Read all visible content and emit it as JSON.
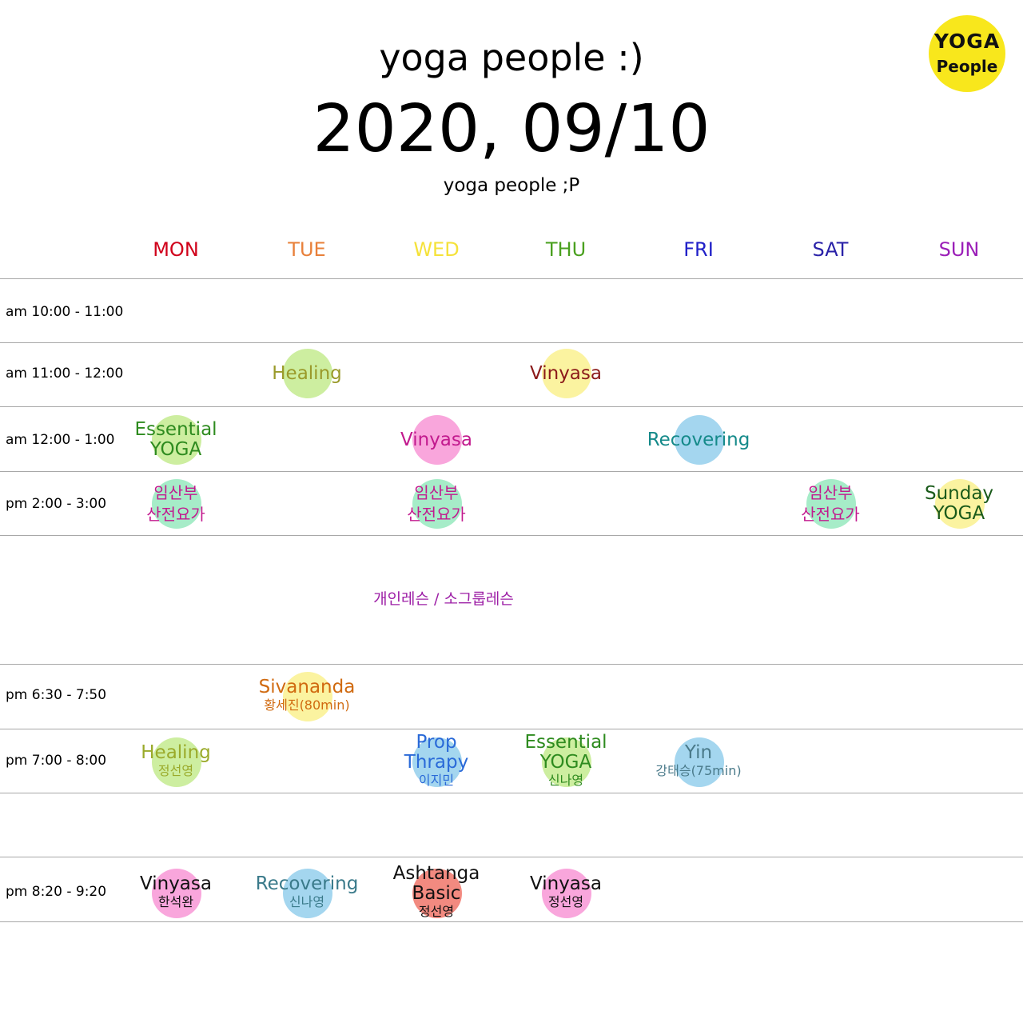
{
  "header": {
    "title": "yoga people :)",
    "date": "2020, 09/10",
    "subtitle": "yoga people ;P",
    "logo_text": [
      "YOGA",
      "People"
    ]
  },
  "days": [
    {
      "label": "MON",
      "color": "#d0021b"
    },
    {
      "label": "TUE",
      "color": "#e8803a"
    },
    {
      "label": "WED",
      "color": "#f5e23a"
    },
    {
      "label": "THU",
      "color": "#4aa01f"
    },
    {
      "label": "FRI",
      "color": "#2020c8"
    },
    {
      "label": "SAT",
      "color": "#2a22a8"
    },
    {
      "label": "SUN",
      "color": "#9b1fb8"
    }
  ],
  "times": [
    "am 10:00 - 11:00",
    "am 11:00 - 12:00",
    "am 12:00 - 1:00",
    "pm 2:00 - 3:00",
    "pm 6:30 - 7:50",
    "pm 7:00 - 8:00",
    "pm 8:20 - 9:20"
  ],
  "private_lesson": "개인레슨 / 소그룹레슨",
  "classes": [
    {
      "day": "TUE",
      "time": "am 11:00 - 12:00",
      "name": "Healing",
      "teacher": "",
      "text_color": "#9a9a2a",
      "circle_color": "#cdeea0"
    },
    {
      "day": "THU",
      "time": "am 11:00 - 12:00",
      "name": "Vinyasa",
      "teacher": "",
      "text_color": "#8b1a1a",
      "circle_color": "#fbf3a0"
    },
    {
      "day": "MON",
      "time": "am 12:00 - 1:00",
      "name": "Essential YOGA",
      "teacher": "",
      "text_color": "#2e8b1f",
      "circle_color": "#cdeea0"
    },
    {
      "day": "WED",
      "time": "am 12:00 - 1:00",
      "name": "Vinyasa",
      "teacher": "",
      "text_color": "#c21a8e",
      "circle_color": "#f9a6dc"
    },
    {
      "day": "FRI",
      "time": "am 12:00 - 1:00",
      "name": "Recovering",
      "teacher": "",
      "text_color": "#158a8a",
      "circle_color": "#a4d6ef"
    },
    {
      "day": "MON",
      "time": "pm 2:00 - 3:00",
      "name": "임산부 산전요가",
      "teacher": "",
      "text_color": "#c21a8e",
      "circle_color": "#a6ecc8"
    },
    {
      "day": "WED",
      "time": "pm 2:00 - 3:00",
      "name": "임산부 산전요가",
      "teacher": "",
      "text_color": "#c21a8e",
      "circle_color": "#a6ecc8"
    },
    {
      "day": "SAT",
      "time": "pm 2:00 - 3:00",
      "name": "임산부 산전요가",
      "teacher": "",
      "text_color": "#c21a8e",
      "circle_color": "#a6ecc8"
    },
    {
      "day": "SUN",
      "time": "pm 2:00 - 3:00",
      "name": "Sunday YOGA",
      "teacher": "",
      "text_color": "#1a5a1a",
      "circle_color": "#fbf3a0"
    },
    {
      "day": "TUE",
      "time": "pm 6:30 - 7:50",
      "name": "Sivananda",
      "teacher": "황세진(80min)",
      "text_color": "#d06a10",
      "circle_color": "#fbf3a0"
    },
    {
      "day": "MON",
      "time": "pm 7:00 - 8:00",
      "name": "Healing",
      "teacher": "정선영",
      "text_color": "#9aaa2a",
      "circle_color": "#cdeea0"
    },
    {
      "day": "WED",
      "time": "pm 7:00 - 8:00",
      "name": "Prop Thrapy",
      "teacher": "이지민",
      "text_color": "#2a6ad8",
      "circle_color": "#a4d6ef"
    },
    {
      "day": "THU",
      "time": "pm 7:00 - 8:00",
      "name": "Essential YOGA",
      "teacher": "신나영",
      "text_color": "#2e8b1f",
      "circle_color": "#cdeea0"
    },
    {
      "day": "FRI",
      "time": "pm 7:00 - 8:00",
      "name": "Yin",
      "teacher": "강태승(75min)",
      "text_color": "#4a7a8a",
      "circle_color": "#a4d6ef"
    },
    {
      "day": "MON",
      "time": "pm 8:20 - 9:20",
      "name": "Vinyasa",
      "teacher": "한석완",
      "text_color": "#111111",
      "circle_color": "#f9a6dc"
    },
    {
      "day": "TUE",
      "time": "pm 8:20 - 9:20",
      "name": "Recovering",
      "teacher": "신나영",
      "text_color": "#3a7a8a",
      "circle_color": "#a4d6ef"
    },
    {
      "day": "WED",
      "time": "pm 8:20 - 9:20",
      "name": "Ashtanga Basic",
      "teacher": "정선영",
      "text_color": "#111111",
      "circle_color": "#f28a80"
    },
    {
      "day": "THU",
      "time": "pm 8:20 - 9:20",
      "name": "Vinyasa",
      "teacher": "정선영",
      "text_color": "#111111",
      "circle_color": "#f9a6dc"
    }
  ]
}
